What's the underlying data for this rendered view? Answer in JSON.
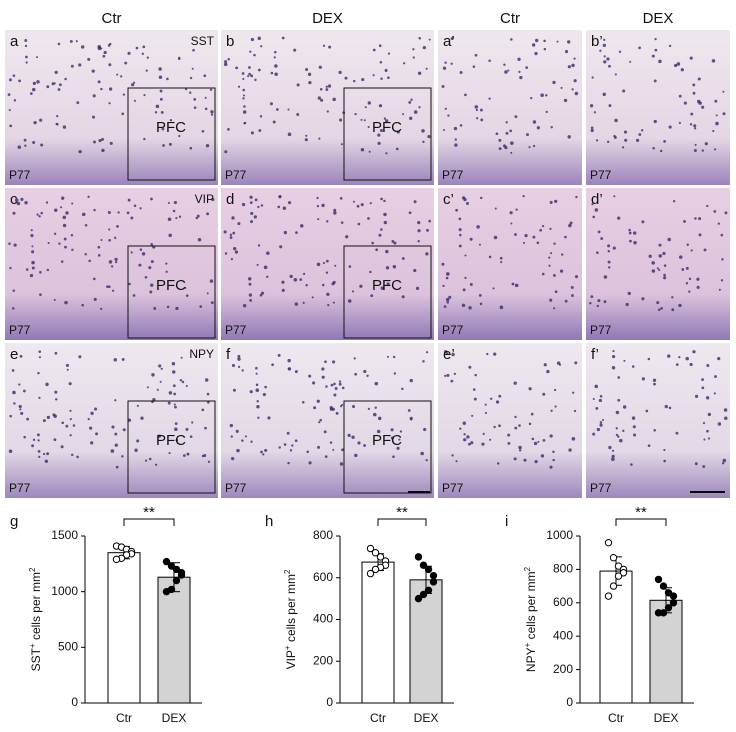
{
  "figure": {
    "column_headers": [
      "Ctr",
      "DEX",
      "Ctr",
      "DEX"
    ],
    "panels": [
      {
        "letter": "a",
        "marker": "SST",
        "age": "P77",
        "region": "PFC"
      },
      {
        "letter": "b",
        "age": "P77",
        "region": "PFC"
      },
      {
        "letter": "a’",
        "age": "P77"
      },
      {
        "letter": "b’",
        "age": "P77"
      },
      {
        "letter": "c",
        "marker": "VIP",
        "age": "P77",
        "region": "PFC"
      },
      {
        "letter": "d",
        "age": "P77",
        "region": "PFC"
      },
      {
        "letter": "c’",
        "age": "P77"
      },
      {
        "letter": "d’",
        "age": "P77"
      },
      {
        "letter": "e",
        "marker": "NPY",
        "age": "P77",
        "region": "PFC"
      },
      {
        "letter": "f",
        "age": "P77",
        "region": "PFC"
      },
      {
        "letter": "e’",
        "age": "P77"
      },
      {
        "letter": "f’",
        "age": "P77"
      }
    ]
  },
  "chart_data": [
    {
      "type": "bar",
      "panel": "g",
      "ylabel": [
        "SST",
        "+",
        " cells per mm",
        "2"
      ],
      "categories": [
        "Ctr",
        "DEX"
      ],
      "values": [
        1350,
        1130
      ],
      "errors": [
        55,
        130
      ],
      "points": [
        [
          1410,
          1400,
          1380,
          1360,
          1340,
          1330,
          1300,
          1290
        ],
        [
          1270,
          1230,
          1200,
          1170,
          1150,
          1100,
          1020,
          1000
        ]
      ],
      "colors": [
        "#ffffff",
        "#d3d3d3"
      ],
      "point_colors": [
        "#ffffff",
        "#000000"
      ],
      "ylim": [
        0,
        1500
      ],
      "yticks": [
        0,
        500,
        1000,
        1500
      ],
      "significance": "**"
    },
    {
      "type": "bar",
      "panel": "h",
      "ylabel": [
        "VIP",
        "+",
        " cells per mm",
        "2"
      ],
      "categories": [
        "Ctr",
        "DEX"
      ],
      "values": [
        675,
        590
      ],
      "errors": [
        40,
        65
      ],
      "points": [
        [
          740,
          720,
          700,
          680,
          660,
          650,
          640,
          620
        ],
        [
          700,
          660,
          640,
          610,
          580,
          540,
          520,
          500
        ]
      ],
      "colors": [
        "#ffffff",
        "#d3d3d3"
      ],
      "point_colors": [
        "#ffffff",
        "#000000"
      ],
      "ylim": [
        0,
        800
      ],
      "yticks": [
        0,
        200,
        400,
        600,
        800
      ],
      "significance": "**"
    },
    {
      "type": "bar",
      "panel": "i",
      "ylabel": [
        "NPY",
        "+",
        " cells per mm",
        "2"
      ],
      "categories": [
        "Ctr",
        "DEX"
      ],
      "values": [
        790,
        615
      ],
      "errors": [
        85,
        75
      ],
      "points": [
        [
          960,
          870,
          820,
          800,
          780,
          760,
          700,
          640
        ],
        [
          740,
          700,
          660,
          640,
          600,
          570,
          540,
          540
        ]
      ],
      "colors": [
        "#ffffff",
        "#d3d3d3"
      ],
      "point_colors": [
        "#ffffff",
        "#000000"
      ],
      "ylim": [
        0,
        1000
      ],
      "yticks": [
        0,
        200,
        400,
        600,
        800,
        1000
      ],
      "significance": "**"
    }
  ]
}
